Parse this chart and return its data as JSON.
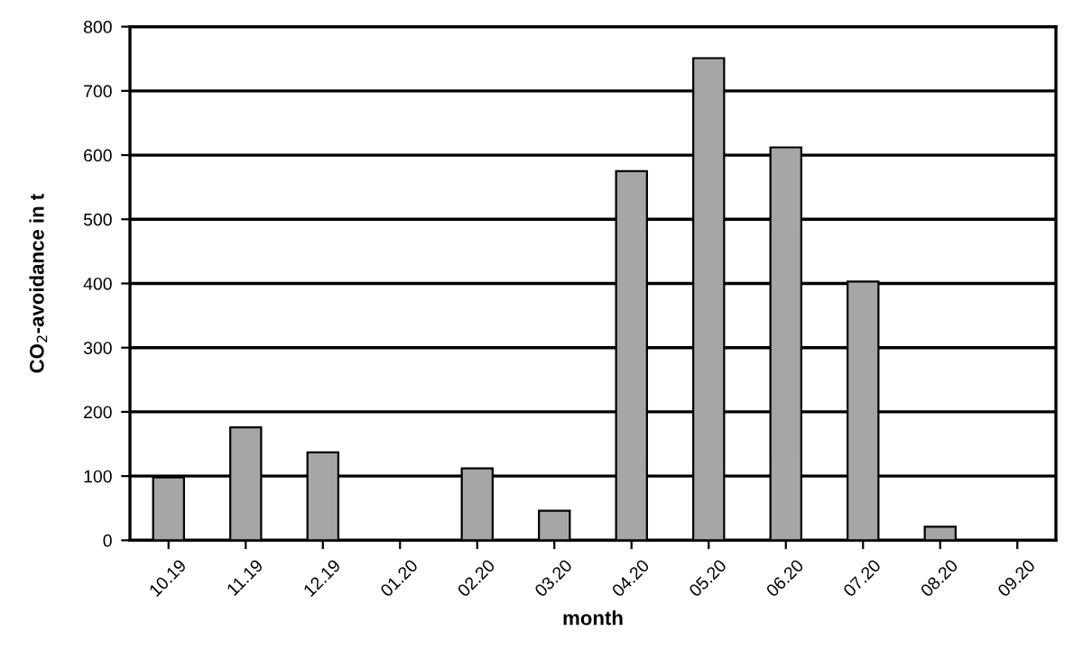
{
  "chart_data": {
    "type": "bar",
    "xlabel": "month",
    "ylabel": "CO$_{2}$-avoidance in t",
    "categories": [
      "10.19",
      "11.19",
      "12.19",
      "01.20",
      "02.20",
      "03.20",
      "04.20",
      "05.20",
      "06.20",
      "07.20",
      "08.20",
      "09.20"
    ],
    "values": [
      98,
      176,
      137,
      0,
      112,
      46,
      575,
      751,
      612,
      403,
      21,
      0
    ],
    "color": "#a6a6a6",
    "ylim": [
      0,
      800
    ],
    "yticks": [
      0,
      100,
      200,
      300,
      400,
      500,
      600,
      700,
      800
    ],
    "grid": "y"
  }
}
